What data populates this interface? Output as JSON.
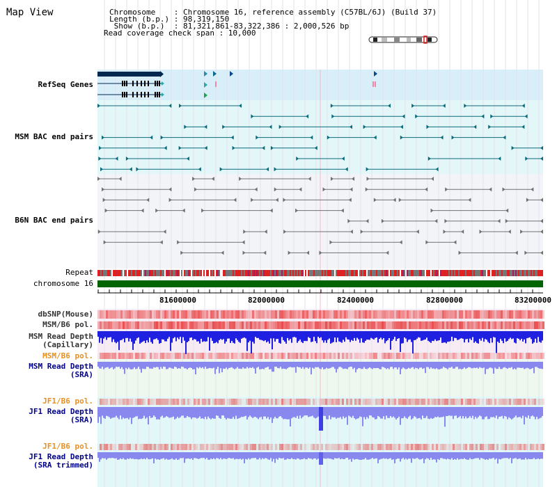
{
  "header": {
    "title": "Map View",
    "chromosome_line": "Chromosome    : Chromosome 16, reference assembly (C57BL/6J) (Build 37)",
    "length_line": "Length (b.p.) : 98,319,150",
    "show_line": " Show (b.p.)  : 81,321,861-83,322,386 : 2,000,526 bp",
    "span_line": "Read coverage check span : 10,000"
  },
  "tracks": {
    "refseq_genes": "RefSeq Genes",
    "msm_bac": "MSM BAC end pairs",
    "b6n_bac": "B6N BAC end pairs",
    "repeat": "Repeat",
    "chromosome": "chromosome 16",
    "dbsnp": "dbSNP(Mouse)",
    "msm_b6_pol_1": "MSM/B6 pol.",
    "msm_depth_cap_1": "MSM Read Depth",
    "msm_depth_cap_2": "(Capillary)",
    "msm_b6_pol_2": "MSM/B6 pol.",
    "msm_depth_sra_1": "MSM Read Depth",
    "msm_depth_sra_2": "(SRA)",
    "jf1_b6_pol_1": "JF1/B6 pol.",
    "jf1_depth_sra_1": "JF1 Read Depth",
    "jf1_depth_sra_2": "(SRA)",
    "jf1_b6_pol_2": "JF1/B6 pol.",
    "jf1_depth_trim_1": "JF1 Read Depth",
    "jf1_depth_trim_2": "(SRA trimmed)"
  },
  "axis": {
    "ticks": [
      "81600000",
      "82000000",
      "82400000",
      "82800000",
      "83200000"
    ]
  },
  "colors": {
    "refseq_bg": "#d8eef8",
    "msm_bac_bg": "#e4f7f8",
    "b6n_bg": "#f3f4f8",
    "depth_bg_pink": "#f8ecf4",
    "depth_bg_green": "#eef8ee",
    "depth_bg_cyan": "#e2f8f8",
    "gene_color": "#002850",
    "msm_bac_color": "#0a6a7a",
    "b6n_color": "#707070",
    "chrom_color": "#006400",
    "polymorphism": "#e83c3c",
    "depth_capillary": "#2020e0",
    "depth_sra": "#8888ee",
    "msm_label_color": "#0a5a84",
    "gene_label_color": "#00008b",
    "b6n_label_color": "#555555",
    "pol_label_color": "#e89020"
  }
}
